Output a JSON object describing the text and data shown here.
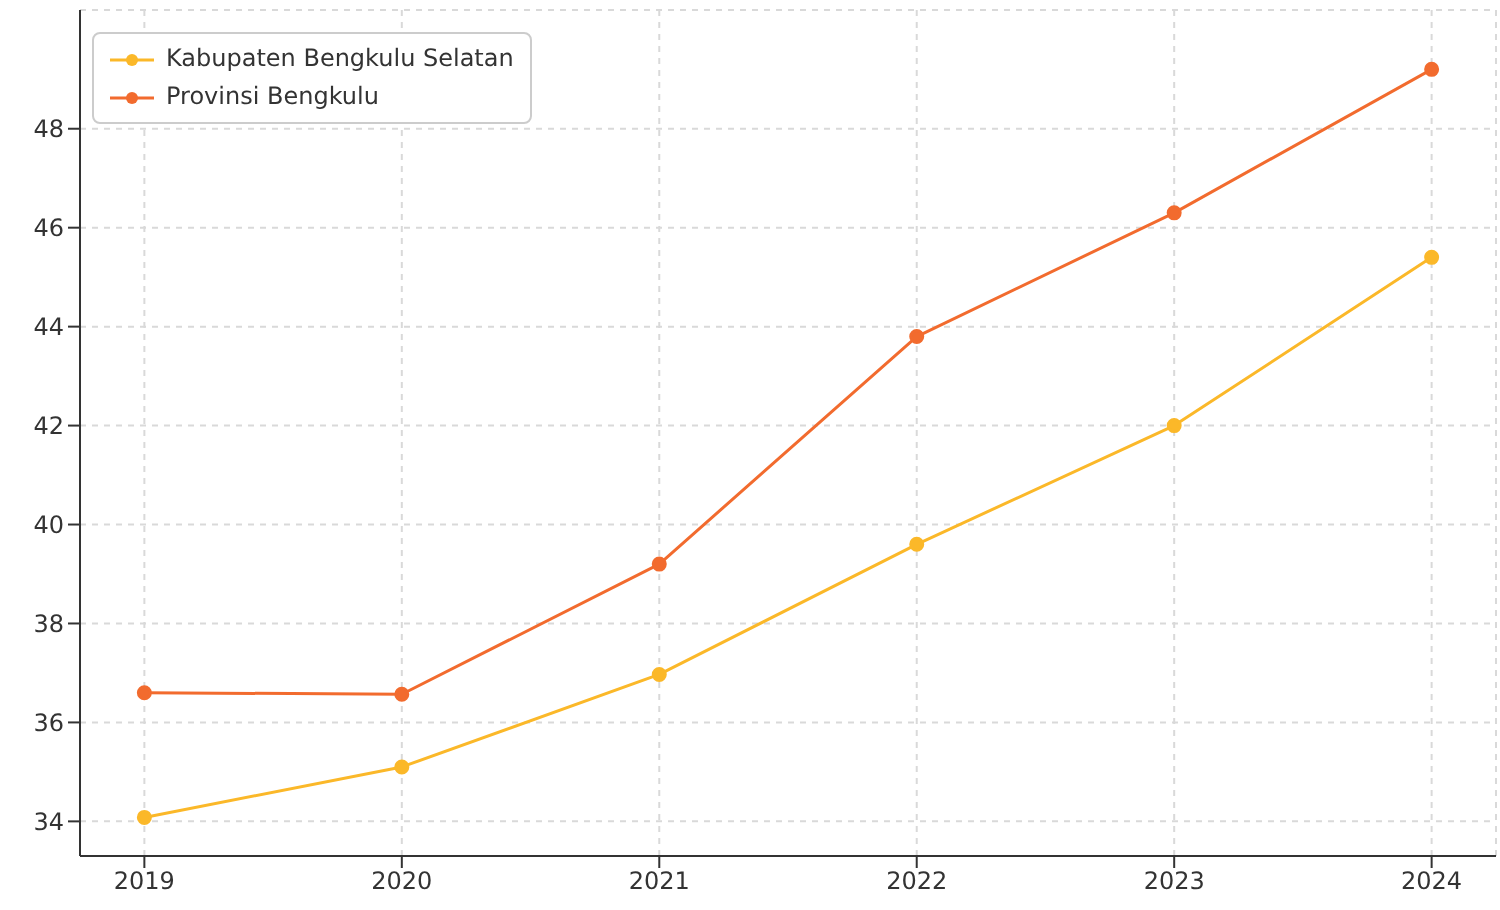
{
  "chart_data": {
    "type": "line",
    "x": [
      2019,
      2020,
      2021,
      2022,
      2023,
      2024
    ],
    "series": [
      {
        "name": "Kabupaten Bengkulu Selatan",
        "color": "#fbb829",
        "values": [
          34.08,
          35.1,
          36.97,
          39.6,
          42.0,
          45.4
        ]
      },
      {
        "name": "Provinsi Bengkulu",
        "color": "#f26b2e",
        "values": [
          36.6,
          36.57,
          39.2,
          43.8,
          46.3,
          49.2
        ]
      }
    ],
    "xlim": [
      2018.75,
      2024.25
    ],
    "xticks": [
      2019,
      2020,
      2021,
      2022,
      2023,
      2024
    ],
    "ylim": [
      33.3,
      50.4
    ],
    "yticks": [
      34,
      36,
      38,
      40,
      42,
      44,
      46,
      48
    ],
    "grid": true,
    "legend": "top left",
    "marker": "circle",
    "line_style": "solid"
  }
}
